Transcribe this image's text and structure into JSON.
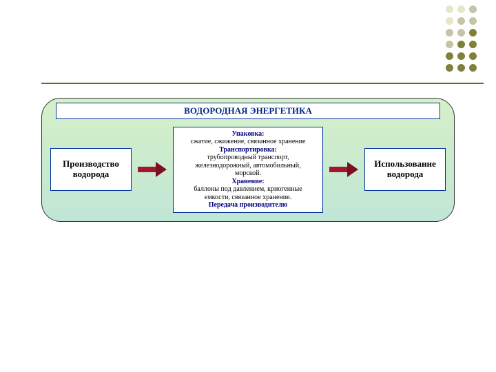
{
  "colors": {
    "bg_gradient_top": "#d6f0c8",
    "bg_gradient_bottom": "#c0e6d6",
    "border_navy": "#003399",
    "title_color": "#002a86",
    "box_text": "#000000",
    "mid_header": "#000080",
    "arrow_body": "#a0182c",
    "arrow_head": "#7a1020",
    "hr_color": "#666633",
    "dot_olive": "#80803a",
    "dot_gray": "#c4c4a8",
    "dot_light": "#e6e6c8"
  },
  "sizes": {
    "title_fontsize": 13,
    "side_fontsize": 13,
    "mid_fontsize": 10
  },
  "title": "ВОДОРОДНАЯ ЭНЕРГЕТИКА",
  "left_box": {
    "line1": "Производство",
    "line2": "водорода"
  },
  "right_box": {
    "line1": "Использование",
    "line2": "водорода"
  },
  "mid_box": {
    "h1": "Упаковка:",
    "t1": "сжатие, сжижение, связанное хранение",
    "h2": "Транспортировка:",
    "t2a": "трубопроводный транспорт,",
    "t2b": "железнодорожный, автомобильный,",
    "t2c": "морской.",
    "h3": "Хранение:",
    "t3a": "баллоны под давлением, криогенные",
    "t3b": "емкости, связанное хранение.",
    "h4": "Передача производителю"
  },
  "dots": {
    "columns": [
      [
        "dot_light",
        "dot_light",
        "dot_gray",
        "dot_gray",
        "dot_olive",
        "dot_olive"
      ],
      [
        "dot_light",
        "dot_gray",
        "dot_gray",
        "dot_olive",
        "dot_olive",
        "dot_olive"
      ],
      [
        "dot_gray",
        "dot_gray",
        "dot_olive",
        "dot_olive",
        "dot_olive",
        "dot_olive"
      ]
    ]
  }
}
